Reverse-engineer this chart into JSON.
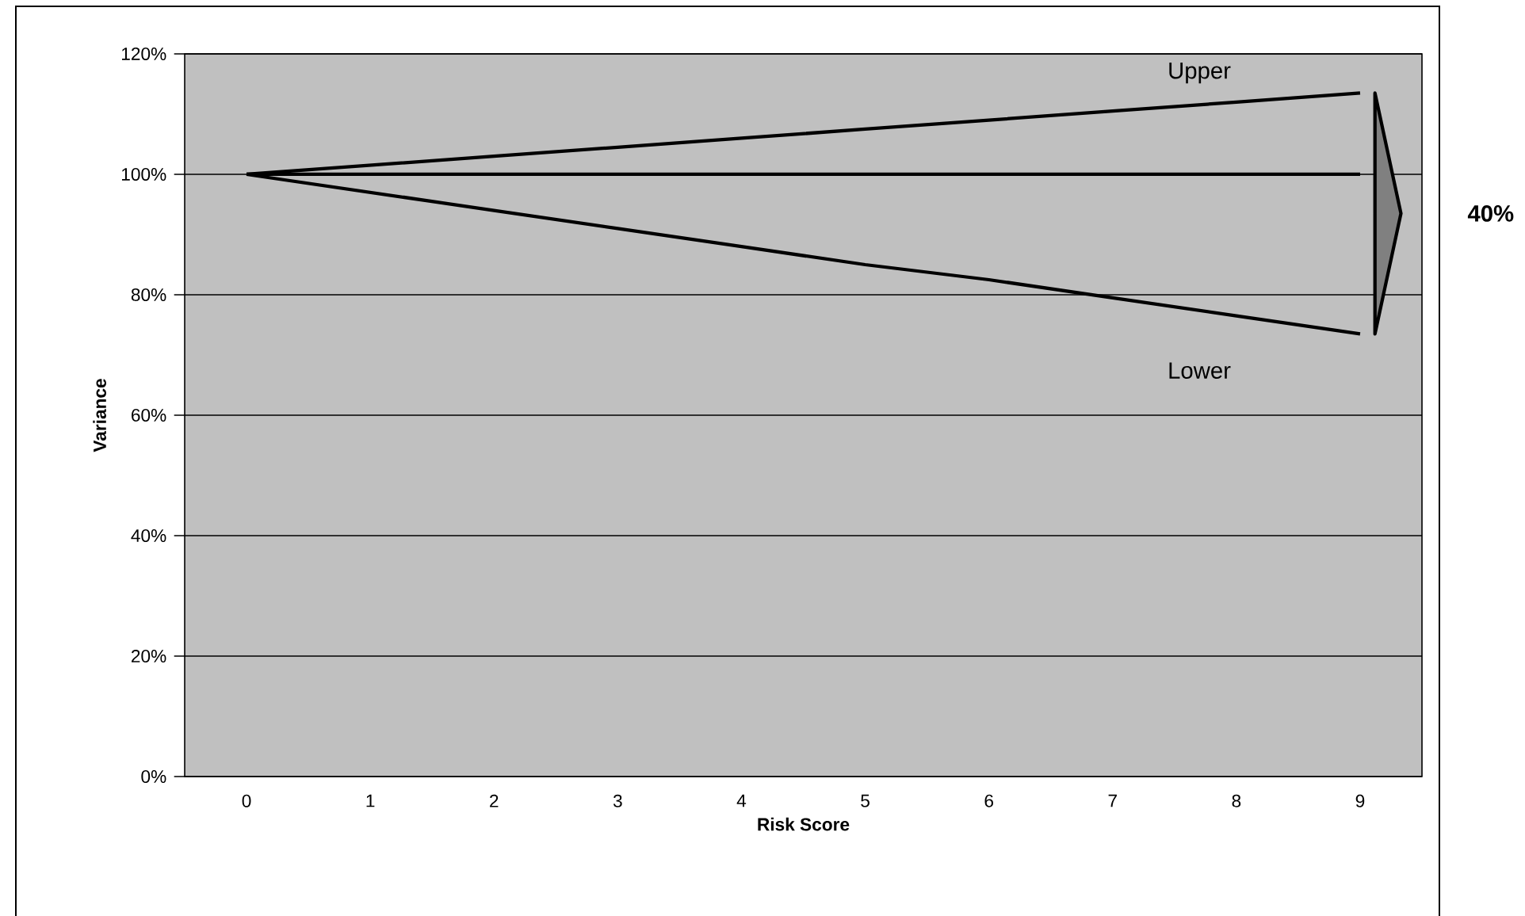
{
  "chart_data": {
    "type": "line",
    "xlabel": "Risk Score",
    "ylabel": "Variance",
    "categories": [
      "0",
      "1",
      "2",
      "3",
      "4",
      "5",
      "6",
      "7",
      "8",
      "9"
    ],
    "series": [
      {
        "name": "Upper",
        "color": "#000000",
        "values": [
          100,
          101.5,
          103,
          104.5,
          106,
          107.5,
          109,
          110.5,
          112,
          113.5
        ]
      },
      {
        "color": "#000000",
        "values": [
          100,
          100,
          100,
          100,
          100,
          100,
          100,
          100,
          100,
          100
        ]
      },
      {
        "name": "Lower",
        "color": "#000000",
        "values": [
          100,
          97,
          94,
          91,
          88,
          85,
          82.5,
          79.5,
          76.5,
          73.5
        ]
      }
    ],
    "ylim": [
      0,
      120
    ],
    "yticks": [
      {
        "value": 0,
        "label": "0%"
      },
      {
        "value": 20,
        "label": "20%"
      },
      {
        "value": 40,
        "label": "40%"
      },
      {
        "value": 60,
        "label": "60%"
      },
      {
        "value": 80,
        "label": "80%"
      },
      {
        "value": 100,
        "label": "100%"
      },
      {
        "value": 120,
        "label": "120%"
      }
    ],
    "grid": "y",
    "marker": "none",
    "line_style": "solid",
    "legend": false,
    "annotations": [
      "40%"
    ]
  }
}
